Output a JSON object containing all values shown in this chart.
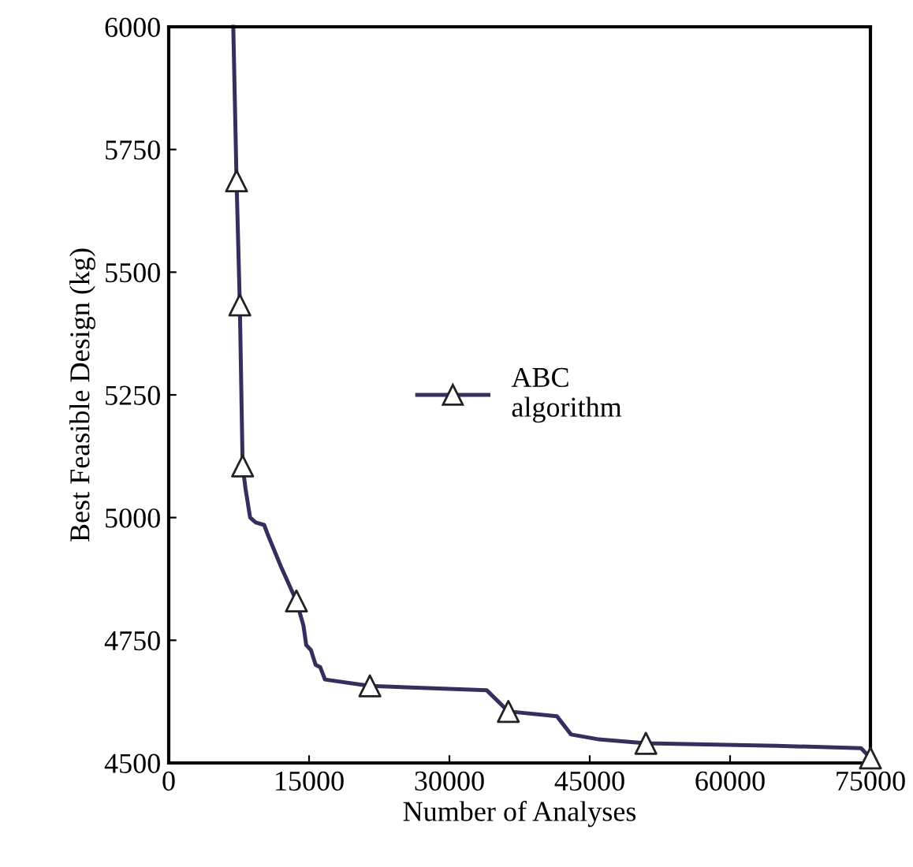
{
  "chart_data": {
    "type": "line",
    "xlabel": "Number of Analyses",
    "ylabel": "Best Feasible Design (kg)",
    "xlim": [
      0,
      75000
    ],
    "xticks": [
      0,
      15000,
      30000,
      45000,
      60000,
      75000
    ],
    "ylim": [
      4500,
      6000
    ],
    "yticks": [
      4500,
      4750,
      5000,
      5250,
      5500,
      5750,
      6000
    ],
    "grid": false,
    "legend": "center",
    "series": [
      {
        "name": "ABC\nalgorithm",
        "color": "#382d5c",
        "marker": "none",
        "line_style": "solid",
        "x": [
          6900,
          7250,
          7600,
          7900,
          8200,
          8700,
          9300,
          10200,
          10700,
          12000,
          13650,
          14400,
          14700,
          15200,
          15700,
          16200,
          16700,
          21500,
          34000,
          36300,
          41500,
          43000,
          46000,
          51000,
          65000,
          74000,
          75000
        ],
        "values": [
          6000,
          5686,
          5433,
          5105,
          5060,
          5000,
          4990,
          4985,
          4960,
          4900,
          4830,
          4780,
          4740,
          4730,
          4700,
          4695,
          4670,
          4657,
          4648,
          4605,
          4595,
          4558,
          4548,
          4540,
          4535,
          4530,
          4510
        ]
      },
      {
        "type": "scatter",
        "color": "#ffffff",
        "marker": "triangle",
        "x": [
          7250,
          7600,
          7900,
          13650,
          21500,
          36300,
          51000,
          75000
        ],
        "values": [
          5686,
          5433,
          5105,
          4830,
          4657,
          4605,
          4540,
          4510
        ]
      }
    ]
  }
}
